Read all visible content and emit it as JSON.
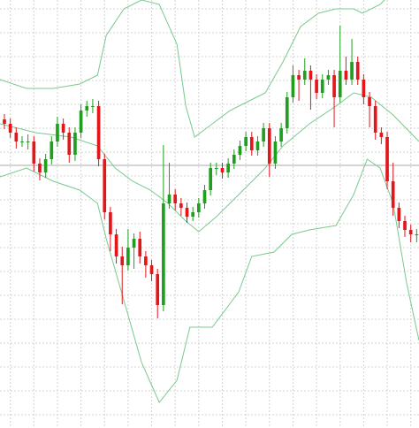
{
  "chart_data": {
    "type": "candlestick",
    "up_color": "#1f9e1f",
    "down_color": "#e3161c",
    "band_color": "#79c98f",
    "grid": true,
    "xlim": [
      -0.75,
      70.4
    ],
    "ylim": [
      0,
      484
    ],
    "xticks": [
      1,
      5,
      9,
      13,
      17,
      21,
      25,
      29,
      33,
      37,
      41,
      45,
      49,
      53,
      57,
      61,
      65,
      69
    ],
    "yticks": [
      15,
      42,
      69,
      96,
      123,
      150,
      177,
      204,
      231,
      258,
      285,
      312,
      339,
      366,
      393,
      420,
      447,
      474
    ],
    "price_line": 297,
    "open": [
      349,
      344,
      334,
      324,
      324,
      324,
      299,
      289,
      304,
      324,
      344,
      334,
      309,
      334,
      359,
      364,
      364,
      304,
      244,
      219,
      194,
      184,
      204,
      214,
      194,
      184,
      174,
      139,
      254,
      264,
      254,
      249,
      239,
      244,
      254,
      269,
      294,
      294,
      289,
      299,
      309,
      319,
      329,
      314,
      324,
      339,
      299,
      324,
      339,
      374,
      399,
      394,
      404,
      394,
      379,
      394,
      399,
      374,
      404,
      394,
      414,
      394,
      374,
      364,
      334,
      329,
      279,
      249,
      234,
      224,
      219
    ],
    "high": [
      355,
      350,
      340,
      330,
      332,
      330,
      305,
      310,
      330,
      352,
      350,
      340,
      340,
      366,
      370,
      372,
      370,
      310,
      250,
      225,
      205,
      225,
      220,
      222,
      200,
      190,
      180,
      320,
      300,
      270,
      260,
      255,
      250,
      260,
      275,
      300,
      300,
      300,
      305,
      315,
      325,
      335,
      335,
      330,
      345,
      345,
      330,
      345,
      380,
      410,
      405,
      418,
      410,
      400,
      400,
      405,
      405,
      455,
      420,
      440,
      420,
      400,
      380,
      370,
      340,
      335,
      300,
      255,
      240,
      230,
      225
    ],
    "low": [
      338,
      328,
      316,
      318,
      315,
      290,
      280,
      283,
      298,
      318,
      326,
      300,
      302,
      328,
      352,
      356,
      296,
      236,
      200,
      186,
      140,
      178,
      180,
      186,
      170,
      166,
      124,
      132,
      248,
      246,
      240,
      232,
      234,
      238,
      248,
      263,
      286,
      282,
      283,
      293,
      303,
      313,
      308,
      308,
      318,
      284,
      293,
      318,
      333,
      368,
      370,
      388,
      360,
      372,
      373,
      388,
      340,
      368,
      388,
      388,
      388,
      366,
      340,
      326,
      321,
      270,
      240,
      226,
      216,
      210,
      210
    ],
    "close": [
      344,
      334,
      324,
      324,
      324,
      299,
      289,
      304,
      324,
      344,
      334,
      309,
      334,
      359,
      364,
      364,
      304,
      244,
      219,
      194,
      184,
      204,
      214,
      194,
      184,
      174,
      139,
      254,
      264,
      254,
      249,
      239,
      244,
      254,
      269,
      294,
      294,
      289,
      299,
      309,
      319,
      329,
      314,
      324,
      339,
      299,
      324,
      339,
      374,
      399,
      394,
      404,
      394,
      379,
      394,
      399,
      374,
      404,
      394,
      414,
      394,
      374,
      364,
      334,
      329,
      279,
      249,
      234,
      224,
      219,
      219
    ],
    "bands": [
      {
        "x": [
          -0.75,
          3.75,
          8.3,
          12.8,
          15.8,
          17.3,
          20.3,
          23.3,
          26.3,
          29.3,
          30.8,
          32.3,
          35.3,
          38.3,
          41.3,
          44.3,
          47.3,
          50.3,
          53.3,
          56.3,
          59.3,
          60.8,
          63.8,
          65.3
        ],
        "values": [
          394,
          384,
          384,
          389,
          399,
          444,
          474,
          484,
          479,
          434,
          364,
          329,
          344,
          359,
          369,
          379,
          414,
          454,
          469,
          474,
          474,
          469,
          479,
          489
        ]
      },
      {
        "x": [
          -0.75,
          5.3,
          11.3,
          15.8,
          18.8,
          21.8,
          24.8,
          27.8,
          30.8,
          33,
          36,
          39.8,
          44.3,
          47.3,
          51.8,
          56.3,
          59.3,
          62.3,
          66,
          70.4
        ],
        "values": [
          344,
          334,
          329,
          319,
          294,
          279,
          269,
          254,
          234,
          222,
          239,
          264,
          294,
          319,
          344,
          364,
          379,
          374,
          354,
          324
        ]
      },
      {
        "x": [
          -0.75,
          3.75,
          8.3,
          12.8,
          15.8,
          17.3,
          20.3,
          23.3,
          26.3,
          29.3,
          31.5,
          35.3,
          39.8,
          42,
          45.8,
          48.8,
          51.8,
          56.3,
          59.3,
          61.6,
          63.8,
          66,
          68.3,
          70.4
        ],
        "values": [
          284,
          294,
          279,
          269,
          254,
          214,
          144,
          74,
          29,
          54,
          114,
          114,
          154,
          194,
          199,
          219,
          224,
          229,
          264,
          304,
          294,
          254,
          164,
          99
        ]
      }
    ]
  }
}
